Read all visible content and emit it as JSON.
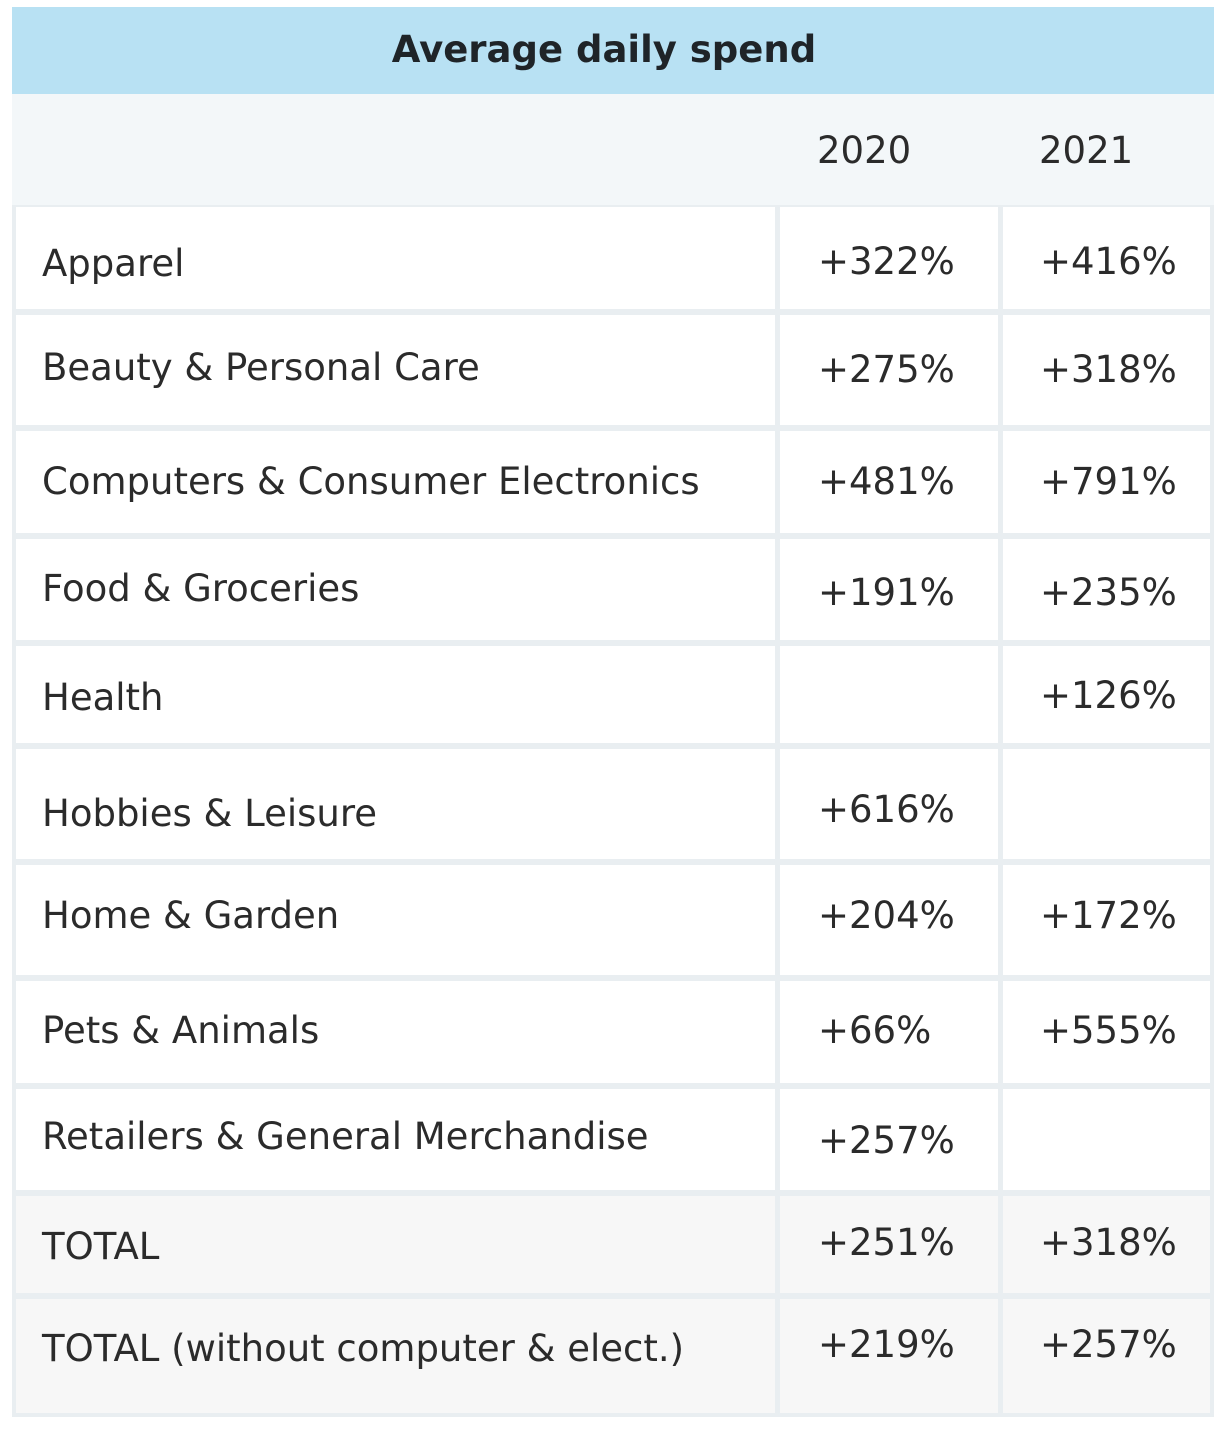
{
  "table": {
    "title": "Average daily spend",
    "columns": [
      "2020",
      "2021"
    ],
    "rows": [
      {
        "label": "Apparel",
        "y2020": "+322%",
        "y2021": "+416%"
      },
      {
        "label": "Beauty & Personal Care",
        "y2020": "+275%",
        "y2021": "+318%"
      },
      {
        "label": "Computers & Consumer Electronics",
        "y2020": "+481%",
        "y2021": "+791%"
      },
      {
        "label": "Food & Groceries",
        "y2020": "+191%",
        "y2021": "+235%"
      },
      {
        "label": "Health",
        "y2020": "",
        "y2021": "+126%"
      },
      {
        "label": "Hobbies & Leisure",
        "y2020": "+616%",
        "y2021": ""
      },
      {
        "label": "Home & Garden",
        "y2020": "+204%",
        "y2021": "+172%"
      },
      {
        "label": "Pets & Animals",
        "y2020": "+66%",
        "y2021": "+555%"
      },
      {
        "label": "Retailers & General Merchandise",
        "y2020": "+257%",
        "y2021": ""
      },
      {
        "label": "TOTAL",
        "y2020": "+251%",
        "y2021": "+318%"
      },
      {
        "label": "TOTAL (without computer & elect.)",
        "y2020": "+219%",
        "y2021": "+257%"
      }
    ]
  }
}
